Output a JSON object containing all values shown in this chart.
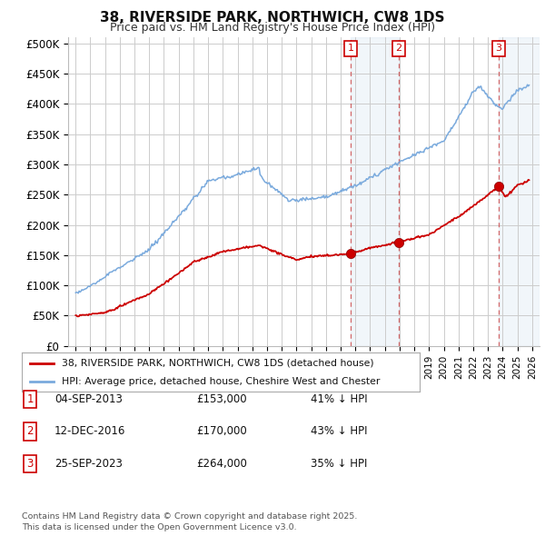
{
  "title": "38, RIVERSIDE PARK, NORTHWICH, CW8 1DS",
  "subtitle": "Price paid vs. HM Land Registry's House Price Index (HPI)",
  "background_color": "#ffffff",
  "plot_bg_color": "#ffffff",
  "grid_color": "#cccccc",
  "sale_color": "#cc0000",
  "hpi_color": "#7aaadd",
  "ylim": [
    0,
    510000
  ],
  "yticks": [
    0,
    50000,
    100000,
    150000,
    200000,
    250000,
    300000,
    350000,
    400000,
    450000,
    500000
  ],
  "ytick_labels": [
    "£0",
    "£50K",
    "£100K",
    "£150K",
    "£200K",
    "£250K",
    "£300K",
    "£350K",
    "£400K",
    "£450K",
    "£500K"
  ],
  "xlim_start": 1994.5,
  "xlim_end": 2026.5,
  "sale_points": [
    {
      "date_num": 2013.67,
      "price": 153000,
      "label": "1"
    },
    {
      "date_num": 2016.95,
      "price": 170000,
      "label": "2"
    },
    {
      "date_num": 2023.73,
      "price": 264000,
      "label": "3"
    }
  ],
  "vline_dates": [
    2013.67,
    2016.95,
    2023.73
  ],
  "shade1_x1": 2013.67,
  "shade1_x2": 2016.95,
  "shade2_x1": 2023.73,
  "shade2_x2": 2026.5,
  "sale_info": [
    {
      "num": "1",
      "date": "04-SEP-2013",
      "price": "£153,000",
      "pct": "41% ↓ HPI"
    },
    {
      "num": "2",
      "date": "12-DEC-2016",
      "price": "£170,000",
      "pct": "43% ↓ HPI"
    },
    {
      "num": "3",
      "date": "25-SEP-2023",
      "price": "£264,000",
      "pct": "35% ↓ HPI"
    }
  ],
  "legend_sale_label": "38, RIVERSIDE PARK, NORTHWICH, CW8 1DS (detached house)",
  "legend_hpi_label": "HPI: Average price, detached house, Cheshire West and Chester",
  "footer": "Contains HM Land Registry data © Crown copyright and database right 2025.\nThis data is licensed under the Open Government Licence v3.0."
}
